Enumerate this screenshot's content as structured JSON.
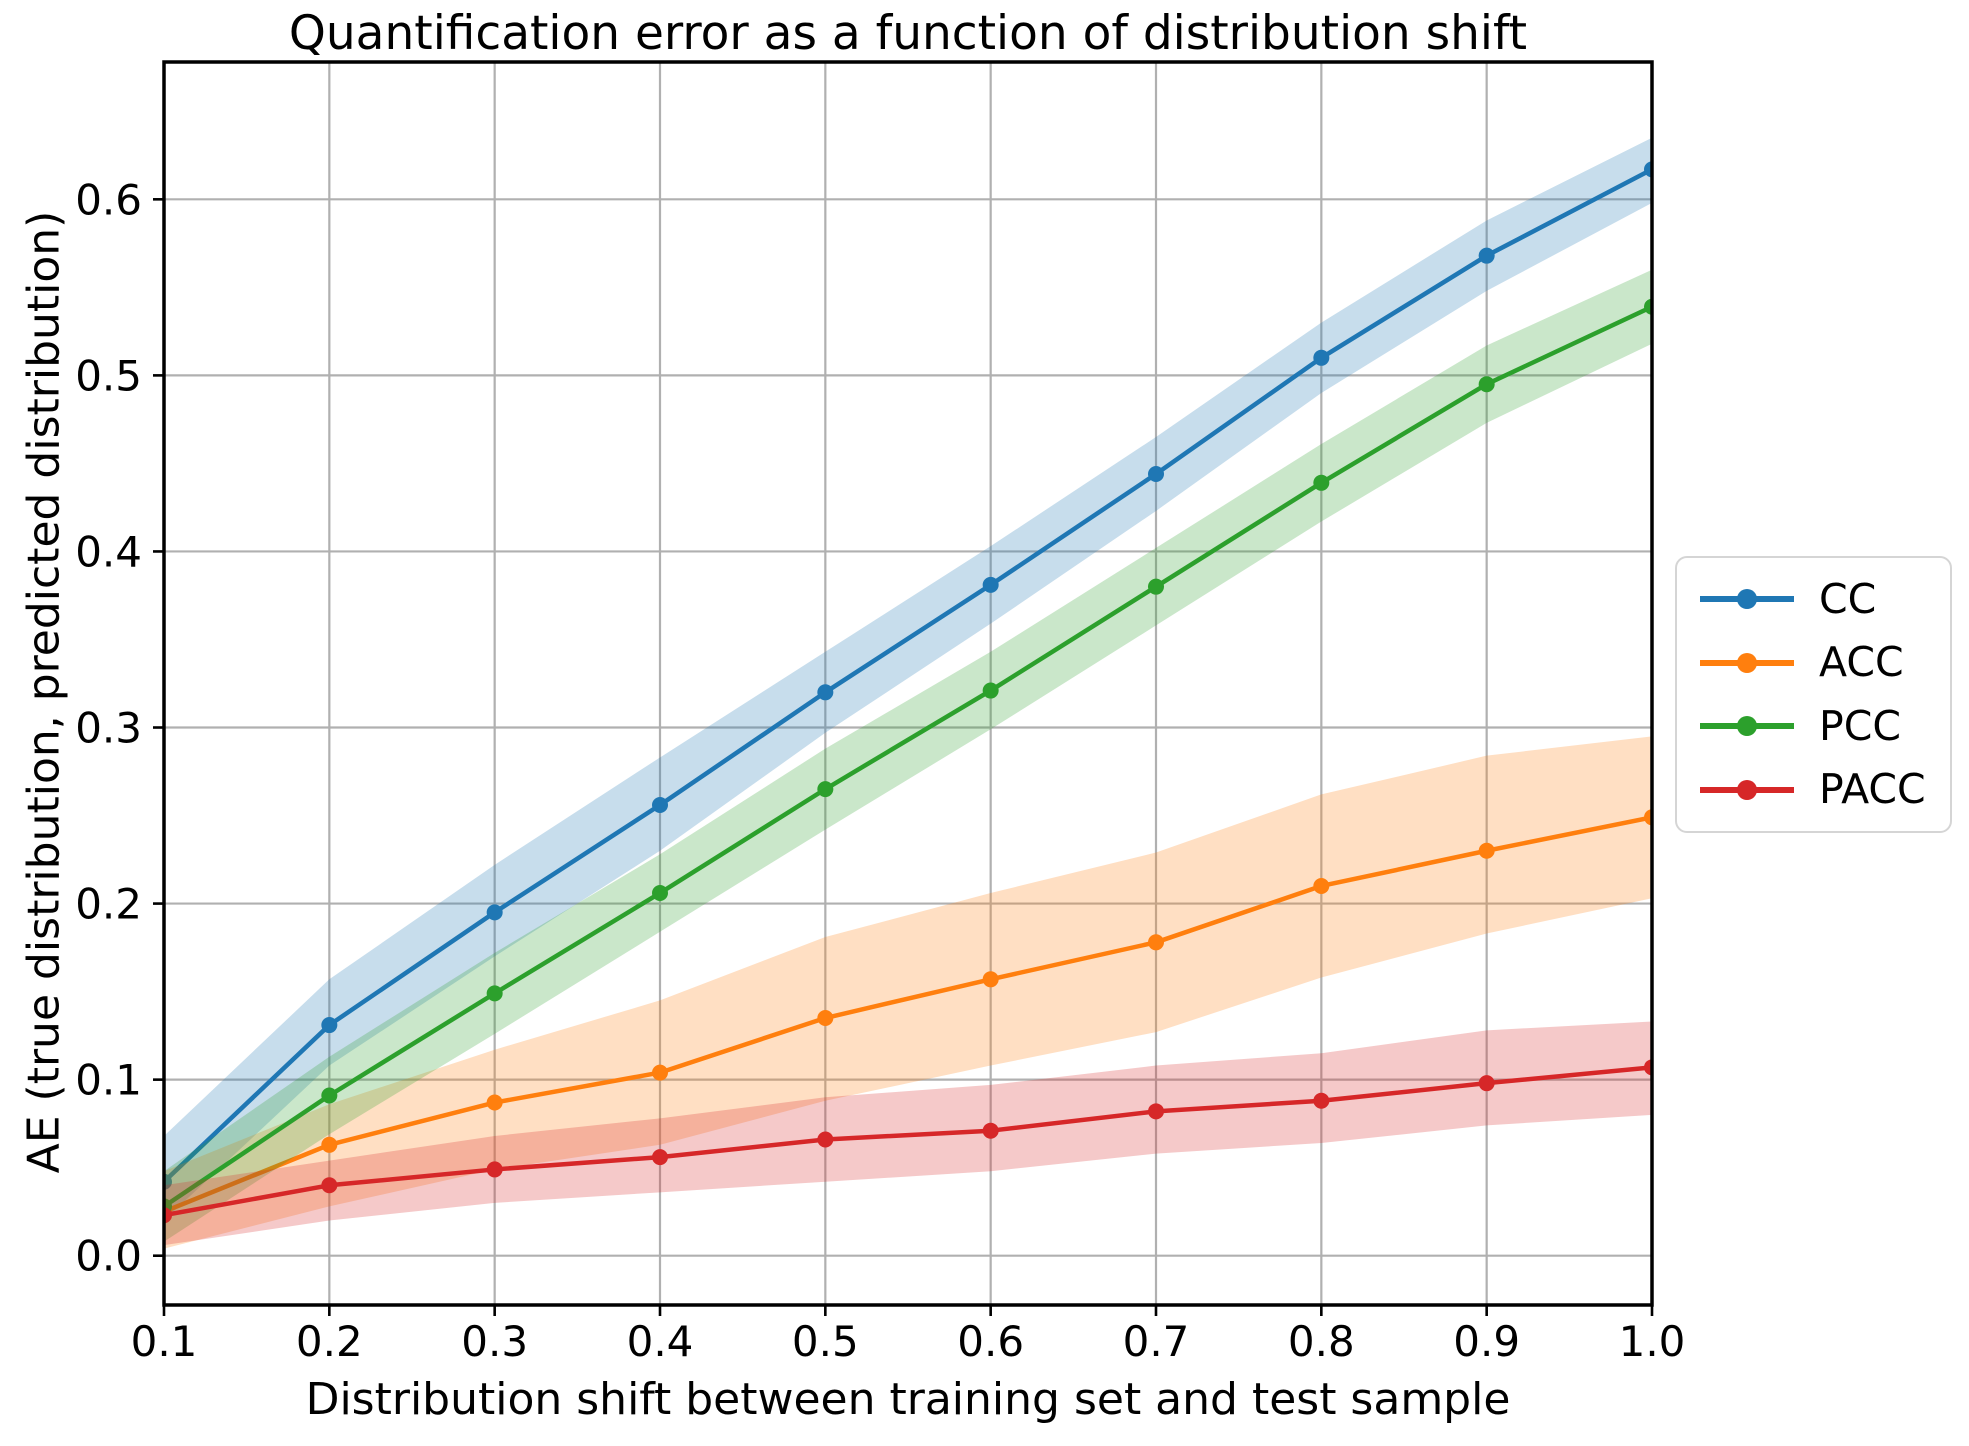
{
  "chart_data": {
    "type": "line",
    "title": "Quantification error as a function of distribution shift",
    "xlabel": "Distribution shift between training set and test sample",
    "ylabel": "AE (true distribution, predicted distribution)",
    "x": [
      0.1,
      0.2,
      0.3,
      0.4,
      0.5,
      0.6,
      0.7,
      0.8,
      0.9,
      1.0
    ],
    "x_tick_labels": [
      "0.1",
      "0.2",
      "0.3",
      "0.4",
      "0.5",
      "0.6",
      "0.7",
      "0.8",
      "0.9",
      "1.0"
    ],
    "y_ticks": [
      0.0,
      0.1,
      0.2,
      0.3,
      0.4,
      0.5,
      0.6
    ],
    "y_tick_labels": [
      "0.0",
      "0.1",
      "0.2",
      "0.3",
      "0.4",
      "0.5",
      "0.6"
    ],
    "xlim": [
      0.1,
      1.0
    ],
    "ylim": [
      -0.028,
      0.678
    ],
    "grid": true,
    "grid_color": "#b0b0b0",
    "band_opacity": 0.25,
    "legend_position": "outside-center-right",
    "series": [
      {
        "name": "CC",
        "color": "#1f77b4",
        "values": [
          0.042,
          0.131,
          0.195,
          0.256,
          0.32,
          0.381,
          0.444,
          0.51,
          0.568,
          0.617
        ],
        "band_upper": [
          0.068,
          0.157,
          0.222,
          0.283,
          0.343,
          0.403,
          0.465,
          0.53,
          0.588,
          0.635
        ],
        "band_lower": [
          0.02,
          0.108,
          0.17,
          0.23,
          0.297,
          0.359,
          0.423,
          0.49,
          0.548,
          0.598
        ]
      },
      {
        "name": "ACC",
        "color": "#ff7f0e",
        "values": [
          0.025,
          0.063,
          0.087,
          0.104,
          0.135,
          0.157,
          0.178,
          0.21,
          0.23,
          0.249
        ],
        "band_upper": [
          0.048,
          0.086,
          0.117,
          0.145,
          0.181,
          0.206,
          0.229,
          0.262,
          0.284,
          0.295
        ],
        "band_lower": [
          0.004,
          0.028,
          0.049,
          0.063,
          0.088,
          0.108,
          0.127,
          0.158,
          0.183,
          0.203
        ]
      },
      {
        "name": "PCC",
        "color": "#2ca02c",
        "values": [
          0.028,
          0.091,
          0.149,
          0.206,
          0.265,
          0.321,
          0.38,
          0.439,
          0.495,
          0.539
        ],
        "band_upper": [
          0.048,
          0.113,
          0.172,
          0.228,
          0.288,
          0.343,
          0.402,
          0.461,
          0.517,
          0.56
        ],
        "band_lower": [
          0.008,
          0.069,
          0.126,
          0.184,
          0.242,
          0.299,
          0.358,
          0.417,
          0.473,
          0.518
        ]
      },
      {
        "name": "PACC",
        "color": "#d62728",
        "values": [
          0.023,
          0.04,
          0.049,
          0.056,
          0.066,
          0.071,
          0.082,
          0.088,
          0.098,
          0.107
        ],
        "band_upper": [
          0.04,
          0.054,
          0.068,
          0.078,
          0.09,
          0.097,
          0.108,
          0.115,
          0.128,
          0.133
        ],
        "band_lower": [
          0.006,
          0.02,
          0.03,
          0.036,
          0.042,
          0.048,
          0.058,
          0.064,
          0.074,
          0.08
        ]
      }
    ]
  }
}
